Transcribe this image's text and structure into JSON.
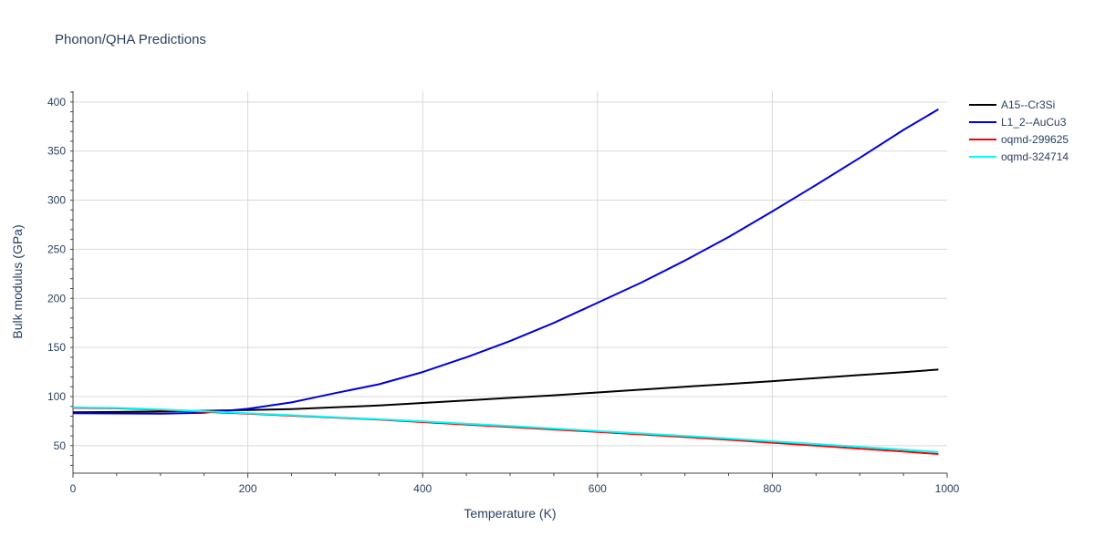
{
  "chart_data": {
    "type": "line",
    "title": "Phonon/QHA Predictions",
    "xlabel": "Temperature (K)",
    "ylabel": "Bulk modulus (GPa)",
    "xlim": [
      0,
      1000
    ],
    "ylim": [
      22,
      411
    ],
    "xticks": [
      0,
      200,
      400,
      600,
      800,
      1000
    ],
    "yticks": [
      50,
      100,
      150,
      200,
      250,
      300,
      350,
      400
    ],
    "grid": true,
    "legend_position": "top-right",
    "series": [
      {
        "name": "A15--Cr3Si",
        "color": "#000000",
        "x": [
          0,
          50,
          100,
          150,
          200,
          250,
          300,
          350,
          400,
          450,
          500,
          550,
          600,
          650,
          700,
          750,
          800,
          850,
          900,
          950,
          990
        ],
        "y": [
          84,
          84.3,
          84.8,
          85.5,
          86.3,
          87.3,
          89,
          91,
          93.5,
          96,
          98.7,
          101.3,
          104.2,
          107,
          110,
          112.8,
          115.7,
          118.8,
          121.9,
          124.9,
          127.5
        ]
      },
      {
        "name": "L1_2--AuCu3",
        "color": "#0000dd",
        "x": [
          0,
          50,
          100,
          150,
          200,
          250,
          300,
          350,
          400,
          450,
          500,
          550,
          600,
          650,
          700,
          750,
          800,
          850,
          900,
          950,
          990
        ],
        "y": [
          83,
          82.8,
          82.6,
          83.5,
          87.5,
          94,
          103.5,
          112.5,
          125,
          140,
          156.5,
          175,
          195.5,
          216,
          238.5,
          262.5,
          288.5,
          315.5,
          343,
          371.5,
          392.5
        ]
      },
      {
        "name": "oqmd-299625",
        "color": "#ff0000",
        "x": [
          0,
          50,
          100,
          150,
          200,
          250,
          300,
          350,
          400,
          450,
          500,
          550,
          600,
          650,
          700,
          750,
          800,
          850,
          900,
          950,
          990
        ],
        "y": [
          88.5,
          88,
          86.5,
          84.5,
          82.5,
          80.5,
          78.5,
          76.5,
          74,
          71.5,
          69,
          66.5,
          64,
          61.5,
          58.8,
          56,
          53,
          50,
          47,
          44,
          41.5
        ]
      },
      {
        "name": "oqmd-324714",
        "color": "#00ffff",
        "x": [
          0,
          50,
          100,
          150,
          200,
          250,
          300,
          350,
          400,
          450,
          500,
          550,
          600,
          650,
          700,
          750,
          800,
          850,
          900,
          950,
          990
        ],
        "y": [
          89,
          88.5,
          87,
          85,
          83,
          81,
          79,
          77,
          74.8,
          72.3,
          70,
          67.5,
          65,
          62.5,
          60,
          57.3,
          54.5,
          51.7,
          48.8,
          46,
          43.5
        ]
      }
    ]
  }
}
